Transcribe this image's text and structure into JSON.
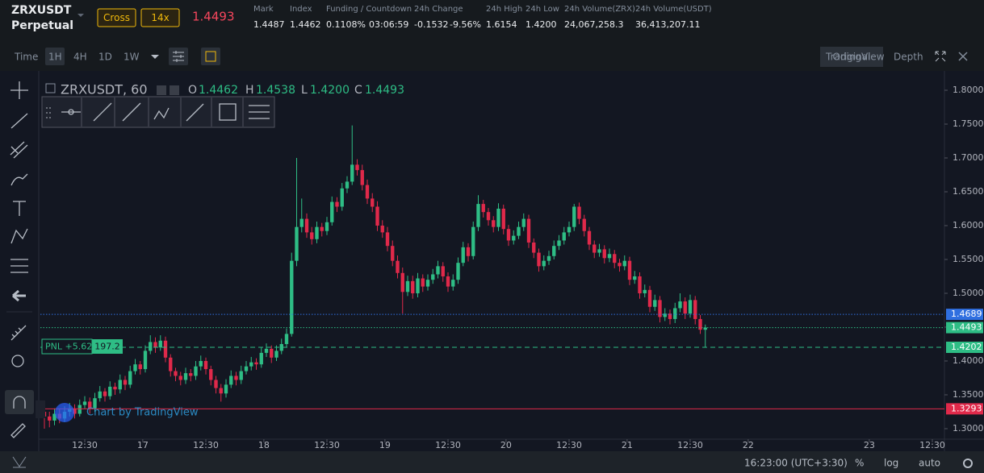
{
  "header": {
    "symbol": "ZRXUSDT",
    "contract": "Perpetual",
    "margin": "Cross",
    "leverage": "14x",
    "price": "1.4493",
    "stats": [
      {
        "label": "Mark",
        "values": [
          "1.4487"
        ]
      },
      {
        "label": "Index",
        "values": [
          "1.4462"
        ]
      },
      {
        "label": "Funding / Countdown",
        "values": [
          "0.1108%",
          "03:06:59"
        ]
      },
      {
        "label": "24h Change",
        "values": [
          "-0.1532",
          "-9.56%"
        ]
      },
      {
        "label": "24h High",
        "values": [
          "1.6154"
        ]
      },
      {
        "label": "24h Low",
        "values": [
          "1.4200"
        ]
      },
      {
        "label": "24h Volume(ZRX)",
        "values": [
          "24,067,258.3"
        ]
      },
      {
        "label": "24h Volume(USDT)",
        "values": [
          "36,413,207.11"
        ]
      }
    ]
  },
  "toolbar": {
    "intervals": [
      "Time",
      "1H",
      "4H",
      "1D",
      "1W"
    ],
    "views": [
      "Original",
      "TradingView",
      "Depth"
    ]
  },
  "legend": {
    "symbol": "ZRXUSDT, 60",
    "open_label": "O",
    "open": "1.4462",
    "high_label": "H",
    "high": "1.4538",
    "low_label": "L",
    "low": "1.4200",
    "close_label": "C",
    "close": "1.4493"
  },
  "position": {
    "pnl": "PNL +5.62",
    "size": "197.2"
  },
  "watermark": "Chart by TradingView",
  "footer": {
    "time": "16:23:00 (UTC+3:30)",
    "percent": "%",
    "log": "log",
    "auto": "auto"
  },
  "chart_data": {
    "type": "candlestick",
    "up_color": "#2ebd85",
    "down_color": "#e0294a",
    "grid": false,
    "ylim": [
      1.2845,
      1.8238
    ],
    "yticks": [
      {
        "value": 1.3,
        "label": "1.3000"
      },
      {
        "value": 1.35,
        "label": "1.3500"
      },
      {
        "value": 1.4,
        "label": "1.4000"
      },
      {
        "value": 1.45,
        "label": "1.4500"
      },
      {
        "value": 1.5,
        "label": "1.5000"
      },
      {
        "value": 1.55,
        "label": "1.5500"
      },
      {
        "value": 1.6,
        "label": "1.6000"
      },
      {
        "value": 1.65,
        "label": "1.6500"
      },
      {
        "value": 1.7,
        "label": "1.7000"
      },
      {
        "value": 1.75,
        "label": "1.7500"
      },
      {
        "value": 1.8,
        "label": "1.8000"
      }
    ],
    "xlim": [
      -0.8,
      178.4
    ],
    "xticks": [
      {
        "value": 8,
        "label": "12:30"
      },
      {
        "value": 19.5,
        "label": "17"
      },
      {
        "value": 32,
        "label": "12:30"
      },
      {
        "value": 43.5,
        "label": "18"
      },
      {
        "value": 56,
        "label": "12:30"
      },
      {
        "value": 67.5,
        "label": "19"
      },
      {
        "value": 80,
        "label": "12:30"
      },
      {
        "value": 91.5,
        "label": "20"
      },
      {
        "value": 104,
        "label": "12:30"
      },
      {
        "value": 115.5,
        "label": "21"
      },
      {
        "value": 128,
        "label": "12:30"
      },
      {
        "value": 139.5,
        "label": "22"
      },
      {
        "value": 163.5,
        "label": "23"
      },
      {
        "value": 176,
        "label": "12:30"
      }
    ],
    "price_lines": [
      {
        "value": 1.4689,
        "color": "#2f6fe0",
        "style": "dotted"
      },
      {
        "value": 1.4493,
        "color": "#2ebd85",
        "style": "dotted"
      },
      {
        "value": 1.4202,
        "color": "#2ebd85",
        "style": "dashed"
      },
      {
        "value": 1.3293,
        "color": "#e0294a",
        "style": "solid"
      }
    ],
    "candles": [
      [
        1.325,
        1.333,
        1.3,
        1.318
      ],
      [
        1.318,
        1.325,
        1.302,
        1.312
      ],
      [
        1.312,
        1.33,
        1.305,
        1.322
      ],
      [
        1.322,
        1.329,
        1.308,
        1.315
      ],
      [
        1.315,
        1.333,
        1.31,
        1.325
      ],
      [
        1.325,
        1.338,
        1.318,
        1.33
      ],
      [
        1.33,
        1.336,
        1.315,
        1.322
      ],
      [
        1.322,
        1.343,
        1.318,
        1.335
      ],
      [
        1.335,
        1.348,
        1.33,
        1.34
      ],
      [
        1.34,
        1.346,
        1.322,
        1.33
      ],
      [
        1.33,
        1.353,
        1.325,
        1.345
      ],
      [
        1.345,
        1.363,
        1.34,
        1.355
      ],
      [
        1.355,
        1.36,
        1.34,
        1.348
      ],
      [
        1.348,
        1.37,
        1.343,
        1.362
      ],
      [
        1.362,
        1.368,
        1.35,
        1.358
      ],
      [
        1.358,
        1.38,
        1.352,
        1.372
      ],
      [
        1.372,
        1.378,
        1.357,
        1.365
      ],
      [
        1.365,
        1.393,
        1.36,
        1.385
      ],
      [
        1.385,
        1.403,
        1.38,
        1.395
      ],
      [
        1.395,
        1.4,
        1.38,
        1.388
      ],
      [
        1.388,
        1.423,
        1.383,
        1.415
      ],
      [
        1.415,
        1.438,
        1.41,
        1.428
      ],
      [
        1.428,
        1.435,
        1.412,
        1.42
      ],
      [
        1.42,
        1.438,
        1.415,
        1.43
      ],
      [
        1.43,
        1.436,
        1.398,
        1.405
      ],
      [
        1.405,
        1.41,
        1.377,
        1.385
      ],
      [
        1.385,
        1.39,
        1.37,
        1.378
      ],
      [
        1.378,
        1.384,
        1.364,
        1.372
      ],
      [
        1.372,
        1.39,
        1.366,
        1.382
      ],
      [
        1.382,
        1.388,
        1.37,
        1.378
      ],
      [
        1.378,
        1.4,
        1.372,
        1.392
      ],
      [
        1.392,
        1.408,
        1.386,
        1.4
      ],
      [
        1.4,
        1.405,
        1.38,
        1.388
      ],
      [
        1.388,
        1.393,
        1.364,
        1.372
      ],
      [
        1.372,
        1.378,
        1.352,
        1.36
      ],
      [
        1.36,
        1.366,
        1.34,
        1.352
      ],
      [
        1.352,
        1.373,
        1.346,
        1.365
      ],
      [
        1.365,
        1.386,
        1.36,
        1.378
      ],
      [
        1.378,
        1.384,
        1.364,
        1.372
      ],
      [
        1.372,
        1.393,
        1.366,
        1.385
      ],
      [
        1.385,
        1.4,
        1.38,
        1.392
      ],
      [
        1.392,
        1.406,
        1.386,
        1.398
      ],
      [
        1.398,
        1.404,
        1.387,
        1.395
      ],
      [
        1.395,
        1.42,
        1.39,
        1.412
      ],
      [
        1.412,
        1.426,
        1.406,
        1.418
      ],
      [
        1.418,
        1.423,
        1.397,
        1.405
      ],
      [
        1.405,
        1.423,
        1.4,
        1.415
      ],
      [
        1.415,
        1.433,
        1.41,
        1.425
      ],
      [
        1.425,
        1.448,
        1.42,
        1.44
      ],
      [
        1.44,
        1.56,
        1.436,
        1.548
      ],
      [
        1.548,
        1.7,
        1.54,
        1.598
      ],
      [
        1.598,
        1.64,
        1.59,
        1.61
      ],
      [
        1.61,
        1.618,
        1.582,
        1.59
      ],
      [
        1.59,
        1.598,
        1.572,
        1.58
      ],
      [
        1.58,
        1.606,
        1.574,
        1.598
      ],
      [
        1.598,
        1.604,
        1.584,
        1.592
      ],
      [
        1.592,
        1.613,
        1.586,
        1.605
      ],
      [
        1.605,
        1.643,
        1.6,
        1.635
      ],
      [
        1.635,
        1.642,
        1.62,
        1.628
      ],
      [
        1.628,
        1.663,
        1.622,
        1.655
      ],
      [
        1.655,
        1.673,
        1.648,
        1.665
      ],
      [
        1.665,
        1.748,
        1.66,
        1.69
      ],
      [
        1.69,
        1.698,
        1.674,
        1.682
      ],
      [
        1.682,
        1.69,
        1.652,
        1.66
      ],
      [
        1.66,
        1.668,
        1.632,
        1.64
      ],
      [
        1.64,
        1.648,
        1.62,
        1.628
      ],
      [
        1.628,
        1.636,
        1.592,
        1.6
      ],
      [
        1.6,
        1.608,
        1.582,
        1.59
      ],
      [
        1.59,
        1.598,
        1.562,
        1.57
      ],
      [
        1.57,
        1.578,
        1.54,
        1.548
      ],
      [
        1.548,
        1.556,
        1.522,
        1.53
      ],
      [
        1.53,
        1.538,
        1.47,
        1.502
      ],
      [
        1.502,
        1.526,
        1.496,
        1.518
      ],
      [
        1.518,
        1.526,
        1.492,
        1.5
      ],
      [
        1.5,
        1.53,
        1.494,
        1.522
      ],
      [
        1.522,
        1.528,
        1.502,
        1.51
      ],
      [
        1.51,
        1.528,
        1.504,
        1.52
      ],
      [
        1.52,
        1.536,
        1.514,
        1.528
      ],
      [
        1.528,
        1.548,
        1.522,
        1.54
      ],
      [
        1.54,
        1.546,
        1.517,
        1.525
      ],
      [
        1.525,
        1.531,
        1.502,
        1.51
      ],
      [
        1.51,
        1.528,
        1.504,
        1.52
      ],
      [
        1.52,
        1.553,
        1.514,
        1.545
      ],
      [
        1.545,
        1.576,
        1.54,
        1.568
      ],
      [
        1.568,
        1.574,
        1.547,
        1.555
      ],
      [
        1.555,
        1.606,
        1.55,
        1.598
      ],
      [
        1.598,
        1.645,
        1.592,
        1.632
      ],
      [
        1.632,
        1.638,
        1.612,
        1.62
      ],
      [
        1.62,
        1.626,
        1.6,
        1.608
      ],
      [
        1.608,
        1.614,
        1.59,
        1.598
      ],
      [
        1.598,
        1.633,
        1.592,
        1.625
      ],
      [
        1.625,
        1.631,
        1.587,
        1.595
      ],
      [
        1.595,
        1.601,
        1.57,
        1.578
      ],
      [
        1.578,
        1.593,
        1.572,
        1.585
      ],
      [
        1.585,
        1.606,
        1.58,
        1.598
      ],
      [
        1.598,
        1.618,
        1.592,
        1.61
      ],
      [
        1.61,
        1.616,
        1.567,
        1.575
      ],
      [
        1.575,
        1.581,
        1.552,
        1.56
      ],
      [
        1.56,
        1.566,
        1.532,
        1.54
      ],
      [
        1.54,
        1.556,
        1.534,
        1.548
      ],
      [
        1.548,
        1.563,
        1.542,
        1.555
      ],
      [
        1.555,
        1.578,
        1.55,
        1.57
      ],
      [
        1.57,
        1.586,
        1.564,
        1.578
      ],
      [
        1.578,
        1.598,
        1.572,
        1.59
      ],
      [
        1.59,
        1.606,
        1.584,
        1.598
      ],
      [
        1.598,
        1.632,
        1.592,
        1.628
      ],
      [
        1.628,
        1.634,
        1.602,
        1.61
      ],
      [
        1.61,
        1.616,
        1.584,
        1.592
      ],
      [
        1.592,
        1.598,
        1.564,
        1.572
      ],
      [
        1.572,
        1.578,
        1.552,
        1.56
      ],
      [
        1.56,
        1.573,
        1.554,
        1.565
      ],
      [
        1.565,
        1.571,
        1.544,
        1.552
      ],
      [
        1.552,
        1.566,
        1.546,
        1.558
      ],
      [
        1.558,
        1.564,
        1.537,
        1.545
      ],
      [
        1.545,
        1.551,
        1.532,
        1.54
      ],
      [
        1.54,
        1.556,
        1.534,
        1.548
      ],
      [
        1.548,
        1.554,
        1.512,
        1.52
      ],
      [
        1.52,
        1.533,
        1.514,
        1.525
      ],
      [
        1.525,
        1.531,
        1.492,
        1.5
      ],
      [
        1.5,
        1.513,
        1.494,
        1.505
      ],
      [
        1.505,
        1.511,
        1.472,
        1.48
      ],
      [
        1.48,
        1.498,
        1.474,
        1.49
      ],
      [
        1.49,
        1.496,
        1.457,
        1.465
      ],
      [
        1.465,
        1.478,
        1.459,
        1.47
      ],
      [
        1.47,
        1.476,
        1.454,
        1.462
      ],
      [
        1.462,
        1.486,
        1.456,
        1.478
      ],
      [
        1.478,
        1.5,
        1.472,
        1.488
      ],
      [
        1.488,
        1.494,
        1.462,
        1.47
      ],
      [
        1.47,
        1.498,
        1.464,
        1.49
      ],
      [
        1.49,
        1.496,
        1.454,
        1.462
      ],
      [
        1.462,
        1.468,
        1.44,
        1.4462
      ],
      [
        1.4462,
        1.4538,
        1.42,
        1.4493
      ]
    ]
  }
}
